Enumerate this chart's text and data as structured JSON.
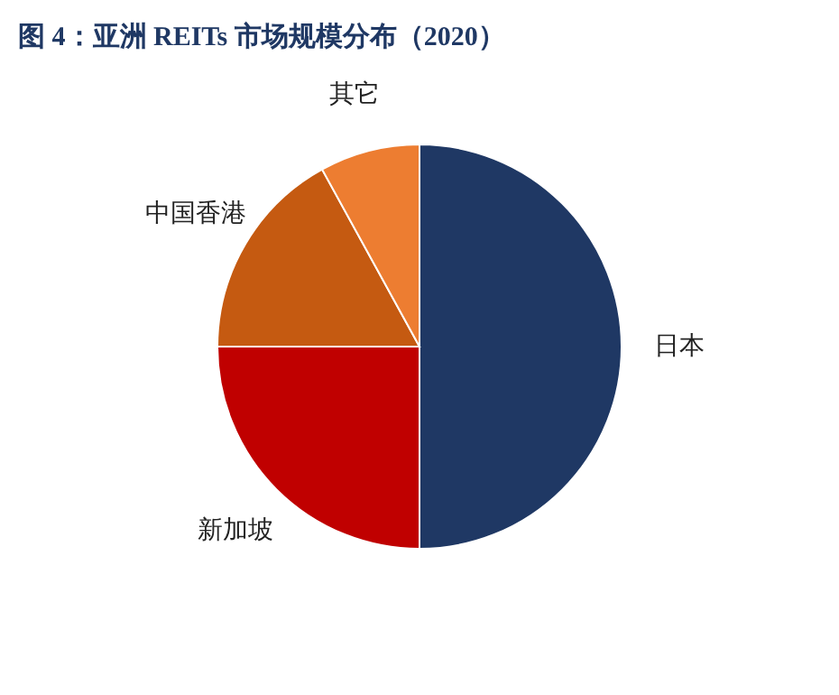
{
  "chart_data": {
    "type": "pie",
    "title": "图 4：亚洲 REITs 市场规模分布（2020）",
    "categories": [
      "日本",
      "新加坡",
      "中国香港",
      "其它"
    ],
    "values": [
      50,
      25,
      17,
      8
    ],
    "colors": [
      "#1f3864",
      "#c00000",
      "#c55a11",
      "#ed7d31"
    ]
  }
}
